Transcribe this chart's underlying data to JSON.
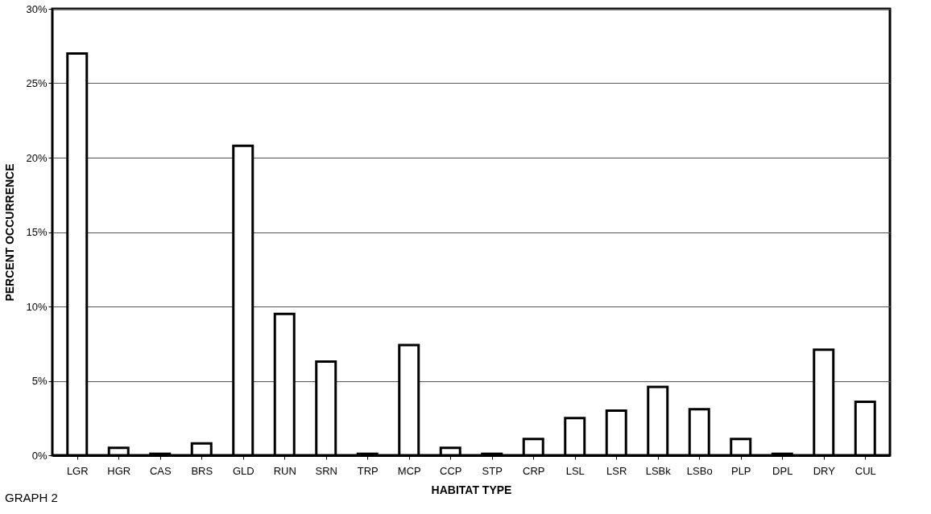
{
  "chart_data": {
    "type": "bar",
    "xlabel": "HABITAT TYPE",
    "ylabel": "PERCENT OCCURRENCE",
    "categories": [
      "LGR",
      "HGR",
      "CAS",
      "BRS",
      "GLD",
      "RUN",
      "SRN",
      "TRP",
      "MCP",
      "CCP",
      "STP",
      "CRP",
      "LSL",
      "LSR",
      "LSBk",
      "LSBo",
      "PLP",
      "DPL",
      "DRY",
      "CUL"
    ],
    "values": [
      27.0,
      0.5,
      0.1,
      0.8,
      20.8,
      9.5,
      6.3,
      0.1,
      7.4,
      0.5,
      0.1,
      1.1,
      2.5,
      3.0,
      4.6,
      3.1,
      1.1,
      0.1,
      7.1,
      3.6
    ],
    "color": "#ffffff",
    "ylim": [
      0,
      30
    ],
    "yticks": [
      {
        "value": 0,
        "label": "0%"
      },
      {
        "value": 5,
        "label": "5%"
      },
      {
        "value": 10,
        "label": "10%"
      },
      {
        "value": 15,
        "label": "15%"
      },
      {
        "value": 20,
        "label": "20%"
      },
      {
        "value": 25,
        "label": "25%"
      },
      {
        "value": 30,
        "label": "30%"
      }
    ],
    "grid": "y",
    "annotations": [
      "GRAPH 2"
    ]
  }
}
